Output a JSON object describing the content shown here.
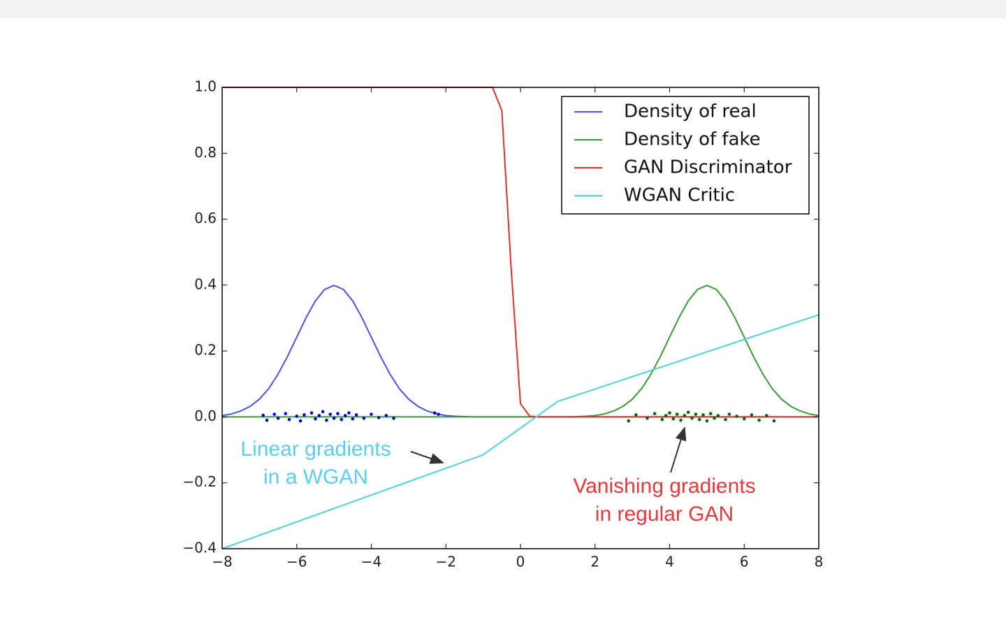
{
  "chart_data": {
    "type": "line",
    "x": [
      -8,
      -7.75,
      -7.5,
      -7.25,
      -7,
      -6.75,
      -6.5,
      -6.25,
      -6,
      -5.75,
      -5.5,
      -5.25,
      -5,
      -4.75,
      -4.5,
      -4.25,
      -4,
      -3.75,
      -3.5,
      -3.25,
      -3,
      -2.75,
      -2.5,
      -2.25,
      -2,
      -1.75,
      -1.5,
      -1.25,
      -1,
      -0.75,
      -0.5,
      -0.25,
      0,
      0.25,
      0.5,
      0.75,
      1,
      1.25,
      1.5,
      1.75,
      2,
      2.25,
      2.5,
      2.75,
      3,
      3.25,
      3.5,
      3.75,
      4,
      4.25,
      4.5,
      4.75,
      5,
      5.25,
      5.5,
      5.75,
      6,
      6.25,
      6.5,
      6.75,
      7,
      7.25,
      7.5,
      7.75,
      8
    ],
    "series": [
      {
        "name": "Density of real",
        "color": "#5050e6",
        "values": [
          0.004,
          0.009,
          0.018,
          0.032,
          0.054,
          0.086,
          0.13,
          0.183,
          0.242,
          0.301,
          0.352,
          0.387,
          0.399,
          0.387,
          0.352,
          0.301,
          0.242,
          0.183,
          0.13,
          0.086,
          0.054,
          0.032,
          0.018,
          0.009,
          0.004,
          0.002,
          0.001,
          0,
          0,
          0,
          0,
          0,
          0,
          0,
          0,
          0,
          0,
          0,
          0,
          0,
          0,
          0,
          0,
          0,
          0,
          0,
          0,
          0,
          0,
          0,
          0,
          0,
          0,
          0,
          0,
          0,
          0,
          0,
          0,
          0,
          0,
          0,
          0,
          0,
          0
        ]
      },
      {
        "name": "Density of fake",
        "color": "#3a9a3a",
        "values": [
          0,
          0,
          0,
          0,
          0,
          0,
          0,
          0,
          0,
          0,
          0,
          0,
          0,
          0,
          0,
          0,
          0,
          0,
          0,
          0,
          0,
          0,
          0,
          0,
          0,
          0,
          0,
          0,
          0,
          0,
          0,
          0,
          0,
          0,
          0,
          0,
          0,
          0,
          0.001,
          0.002,
          0.004,
          0.009,
          0.018,
          0.032,
          0.054,
          0.086,
          0.13,
          0.183,
          0.242,
          0.301,
          0.352,
          0.387,
          0.399,
          0.387,
          0.352,
          0.301,
          0.242,
          0.183,
          0.13,
          0.086,
          0.054,
          0.032,
          0.018,
          0.009,
          0.004
        ]
      },
      {
        "name": "GAN Discriminator",
        "color": "#e0302c",
        "values": [
          1,
          1,
          1,
          1,
          1,
          1,
          1,
          1,
          1,
          1,
          1,
          1,
          1,
          1,
          1,
          1,
          1,
          1,
          1,
          1,
          1,
          1,
          1,
          1,
          1,
          1,
          1,
          1,
          1,
          1,
          0.93,
          0.45,
          0.04,
          0.002,
          0,
          0,
          0,
          0,
          0,
          0,
          0,
          0,
          0,
          0,
          0,
          0,
          0,
          0,
          0,
          0,
          0,
          0,
          0,
          0,
          0,
          0,
          0,
          0,
          0,
          0,
          0,
          0,
          0,
          0,
          0
        ]
      },
      {
        "name": "WGAN Critic",
        "color": "#4fd4d0",
        "x": [
          -8,
          -1,
          1,
          8
        ],
        "values": [
          -0.4,
          -0.115,
          0.047,
          0.31
        ]
      }
    ],
    "samples": [
      {
        "color": "#0000cc",
        "x": [
          -6.9,
          -6.8,
          -6.6,
          -6.5,
          -6.3,
          -6.2,
          -6.0,
          -5.9,
          -5.8,
          -5.6,
          -5.5,
          -5.4,
          -5.3,
          -5.2,
          -5.1,
          -5.0,
          -4.9,
          -4.8,
          -4.7,
          -4.6,
          -4.5,
          -4.4,
          -4.2,
          -4.0,
          -3.8,
          -3.6,
          -3.4,
          -2.3,
          -2.2
        ],
        "y": [
          0.005,
          -0.01,
          0.008,
          -0.004,
          0.01,
          -0.008,
          0.002,
          -0.012,
          0.006,
          0.012,
          -0.006,
          0.004,
          0.016,
          -0.01,
          0.008,
          -0.004,
          0.01,
          -0.008,
          0.004,
          0.012,
          -0.006,
          0.006,
          -0.004,
          0.008,
          -0.002,
          0.004,
          -0.004,
          0.012,
          0.008
        ]
      },
      {
        "color": "#006600",
        "x": [
          2.9,
          3.1,
          3.4,
          3.6,
          3.8,
          3.9,
          4.0,
          4.1,
          4.2,
          4.3,
          4.4,
          4.5,
          4.6,
          4.7,
          4.8,
          4.9,
          5.0,
          5.1,
          5.2,
          5.3,
          5.5,
          5.6,
          5.8,
          6.0,
          6.2,
          6.4,
          6.6,
          6.8
        ],
        "y": [
          -0.012,
          0.006,
          -0.004,
          0.01,
          -0.008,
          0.004,
          0.012,
          -0.006,
          0.008,
          -0.01,
          0.004,
          0.014,
          -0.004,
          0.008,
          -0.008,
          0.006,
          -0.012,
          0.01,
          -0.004,
          0.004,
          -0.008,
          0.008,
          0.002,
          -0.006,
          0.006,
          -0.01,
          0.004,
          -0.012
        ]
      }
    ],
    "xlim": [
      -8,
      8
    ],
    "ylim": [
      -0.4,
      1.0
    ],
    "xticks": [
      {
        "value": -8,
        "label": "−8"
      },
      {
        "value": -6,
        "label": "−6"
      },
      {
        "value": -4,
        "label": "−4"
      },
      {
        "value": -2,
        "label": "−2"
      },
      0,
      2,
      4,
      6,
      8
    ],
    "yticks": [
      {
        "value": -0.4,
        "label": "−0.4"
      },
      {
        "value": -0.2,
        "label": "−0.2"
      },
      {
        "value": 0,
        "label": "0.0"
      },
      0.2,
      0.4,
      0.6,
      0.8,
      {
        "value": 1,
        "label": "1.0"
      }
    ],
    "legend": "upper right",
    "annotations": [
      {
        "lines": [
          "Linear gradients",
          "in a WGAN"
        ],
        "color": "#5ccfe8"
      },
      {
        "lines": [
          "Vanishing gradients",
          "in regular GAN"
        ],
        "color": "#e8383c"
      }
    ]
  }
}
